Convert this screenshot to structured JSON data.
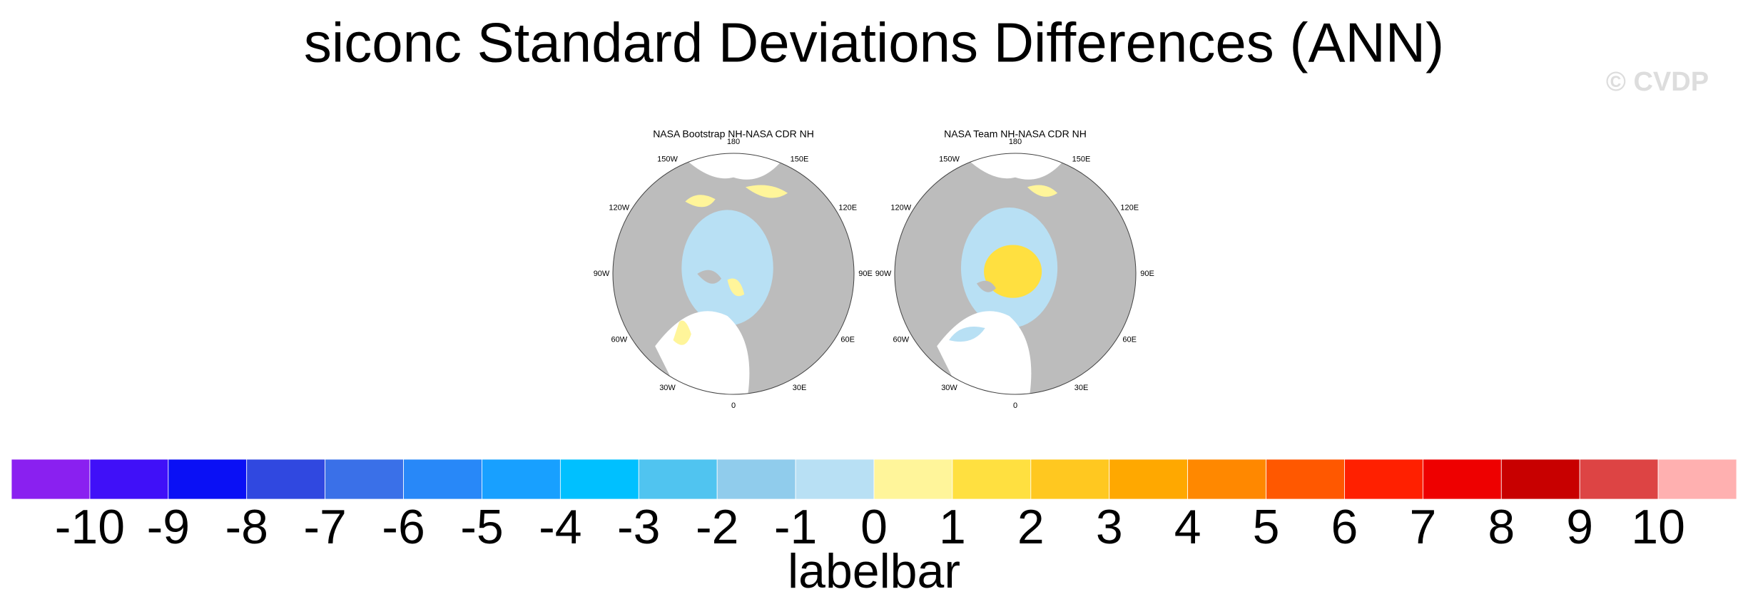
{
  "title": "siconc Standard Deviations Differences (ANN)",
  "watermark": "© CVDP",
  "panels": [
    {
      "title": "NASA Bootstrap NH-NASA CDR NH"
    },
    {
      "title": "NASA Team NH-NASA CDR NH"
    }
  ],
  "longitude_labels": [
    "180",
    "150E",
    "120E",
    "90E",
    "60E",
    "30E",
    "0",
    "30W",
    "60W",
    "90W",
    "120W",
    "150W"
  ],
  "colorbar": {
    "colors": [
      "#8a20f0",
      "#4010f8",
      "#0a10f5",
      "#3048e0",
      "#3a70e8",
      "#2888f8",
      "#18a0ff",
      "#00c0ff",
      "#50c4f0",
      "#90ccec",
      "#b8e0f4",
      "#fff59a",
      "#ffe040",
      "#ffc820",
      "#ffa800",
      "#ff8800",
      "#ff5800",
      "#ff2000",
      "#ee0000",
      "#c80000",
      "#dd4444",
      "#ffb0b0"
    ],
    "ticks": [
      -10,
      -9,
      -8,
      -7,
      -6,
      -5,
      -4,
      -3,
      -2,
      -1,
      0,
      1,
      2,
      3,
      4,
      5,
      6,
      7,
      8,
      9,
      10
    ],
    "label": "labelbar"
  }
}
